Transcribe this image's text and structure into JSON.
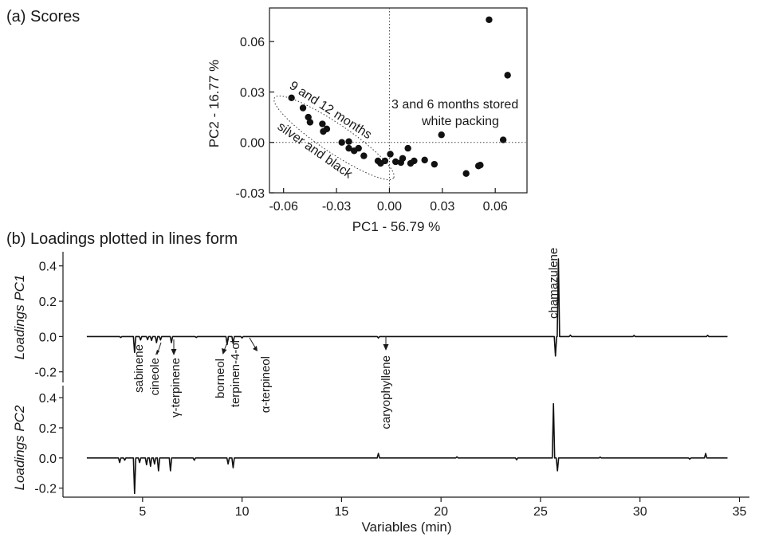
{
  "chart_data": [
    {
      "type": "scatter",
      "panel_label": "(a) Scores",
      "xlabel": "PC1 - 56.79 %",
      "ylabel": "PC2 - 16.77 %",
      "xlim": [
        -0.068,
        0.078
      ],
      "ylim": [
        -0.03,
        0.08
      ],
      "xticks": [
        -0.06,
        -0.03,
        0.0,
        0.03,
        0.06
      ],
      "xtick_labels": [
        "-0.06",
        "-0.03",
        "0.00",
        "0.03",
        "0.06"
      ],
      "yticks": [
        -0.03,
        0.0,
        0.03,
        0.06
      ],
      "ytick_labels": [
        "-0.03",
        "0.00",
        "0.03",
        "0.06"
      ],
      "reference_lines": {
        "x": 0,
        "y": 0,
        "style": "dotted"
      },
      "grid": false,
      "annotations": {
        "group_top": "9 and 12 months",
        "group_bottom": "silver and black",
        "group_right_line1": "3 and 6 months stored",
        "group_right_line2": "white packing"
      },
      "points": [
        {
          "x": -0.0555,
          "y": 0.0265
        },
        {
          "x": -0.049,
          "y": 0.0205
        },
        {
          "x": -0.046,
          "y": 0.015
        },
        {
          "x": -0.045,
          "y": 0.012
        },
        {
          "x": -0.038,
          "y": 0.011
        },
        {
          "x": -0.0375,
          "y": 0.0065
        },
        {
          "x": -0.0355,
          "y": 0.008
        },
        {
          "x": -0.027,
          "y": 0.0
        },
        {
          "x": -0.023,
          "y": 0.0005
        },
        {
          "x": -0.023,
          "y": -0.0035
        },
        {
          "x": -0.02,
          "y": -0.005
        },
        {
          "x": -0.0175,
          "y": -0.0035
        },
        {
          "x": -0.0145,
          "y": -0.008
        },
        {
          "x": -0.0065,
          "y": -0.011
        },
        {
          "x": -0.005,
          "y": -0.0125
        },
        {
          "x": -0.0025,
          "y": -0.011
        },
        {
          "x": 0.0005,
          "y": -0.007
        },
        {
          "x": 0.0035,
          "y": -0.0115
        },
        {
          "x": 0.0065,
          "y": -0.012
        },
        {
          "x": 0.0075,
          "y": -0.0095
        },
        {
          "x": 0.0105,
          "y": -0.0035
        },
        {
          "x": 0.012,
          "y": -0.0125
        },
        {
          "x": 0.014,
          "y": -0.011
        },
        {
          "x": 0.02,
          "y": -0.0105
        },
        {
          "x": 0.0255,
          "y": -0.013
        },
        {
          "x": 0.0295,
          "y": 0.0045
        },
        {
          "x": 0.0435,
          "y": -0.0185
        },
        {
          "x": 0.0505,
          "y": -0.014
        },
        {
          "x": 0.0515,
          "y": -0.0135
        },
        {
          "x": 0.0565,
          "y": 0.073
        },
        {
          "x": 0.0645,
          "y": 0.0015
        },
        {
          "x": 0.067,
          "y": 0.04
        }
      ]
    },
    {
      "type": "line",
      "panel_label": "(b) Loadings plotted in lines form",
      "xlabel": "Variables (min)",
      "xlim": [
        1.0,
        35.5
      ],
      "xticks": [
        5,
        10,
        15,
        20,
        25,
        30,
        35
      ],
      "xtick_labels": [
        "5",
        "10",
        "15",
        "20",
        "25",
        "30",
        "35"
      ],
      "line_range": [
        2.2,
        34.4
      ],
      "series": [
        {
          "name": "Loadings PC1",
          "ylim": [
            -0.26,
            0.48
          ],
          "yticks": [
            -0.2,
            0.0,
            0.2,
            0.4
          ],
          "ytick_labels": [
            "-0.2",
            "0.0",
            "0.2",
            "0.4"
          ],
          "peaks": [
            {
              "x": 3.9,
              "y": -0.006
            },
            {
              "x": 4.6,
              "y": -0.09
            },
            {
              "x": 4.9,
              "y": -0.02
            },
            {
              "x": 5.25,
              "y": -0.018
            },
            {
              "x": 5.45,
              "y": -0.022
            },
            {
              "x": 5.7,
              "y": -0.035
            },
            {
              "x": 5.9,
              "y": -0.02
            },
            {
              "x": 6.45,
              "y": -0.035
            },
            {
              "x": 7.7,
              "y": -0.006
            },
            {
              "x": 9.25,
              "y": -0.045
            },
            {
              "x": 9.55,
              "y": -0.04
            },
            {
              "x": 10.0,
              "y": -0.008
            },
            {
              "x": 16.85,
              "y": -0.008
            },
            {
              "x": 25.75,
              "y": -0.11
            },
            {
              "x": 25.9,
              "y": 0.44
            },
            {
              "x": 26.5,
              "y": 0.008
            },
            {
              "x": 29.7,
              "y": 0.006
            },
            {
              "x": 33.4,
              "y": 0.007
            }
          ]
        },
        {
          "name": "Loadings PC2",
          "ylim": [
            -0.26,
            0.48
          ],
          "yticks": [
            -0.2,
            0.0,
            0.2,
            0.4
          ],
          "ytick_labels": [
            "-0.2",
            "0.0",
            "0.2",
            "0.4"
          ],
          "peaks": [
            {
              "x": 3.85,
              "y": -0.03
            },
            {
              "x": 4.1,
              "y": -0.015
            },
            {
              "x": 4.6,
              "y": -0.235
            },
            {
              "x": 4.85,
              "y": -0.03
            },
            {
              "x": 5.2,
              "y": -0.045
            },
            {
              "x": 5.4,
              "y": -0.055
            },
            {
              "x": 5.6,
              "y": -0.04
            },
            {
              "x": 5.8,
              "y": -0.085
            },
            {
              "x": 6.4,
              "y": -0.085
            },
            {
              "x": 7.6,
              "y": -0.015
            },
            {
              "x": 9.3,
              "y": -0.04
            },
            {
              "x": 9.55,
              "y": -0.065
            },
            {
              "x": 16.85,
              "y": 0.03
            },
            {
              "x": 20.8,
              "y": 0.008
            },
            {
              "x": 23.8,
              "y": -0.012
            },
            {
              "x": 25.65,
              "y": 0.36
            },
            {
              "x": 25.85,
              "y": -0.085
            },
            {
              "x": 28.0,
              "y": 0.006
            },
            {
              "x": 32.5,
              "y": -0.008
            },
            {
              "x": 33.3,
              "y": 0.03
            }
          ]
        }
      ],
      "compound_labels": [
        {
          "text": "sabinene",
          "x": 4.5
        },
        {
          "text": "cineole",
          "x": 5.5
        },
        {
          "text": "γ-terpinene",
          "x": 6.5
        },
        {
          "text": "borneol",
          "x": 8.9
        },
        {
          "text": "terpinen-4-ol",
          "x": 9.55
        },
        {
          "text": "α-terpineol",
          "x": 10.6
        },
        {
          "text": "caryophyllene",
          "x": 16.9
        },
        {
          "text": "chamazulene",
          "x": 25.5
        }
      ]
    }
  ]
}
